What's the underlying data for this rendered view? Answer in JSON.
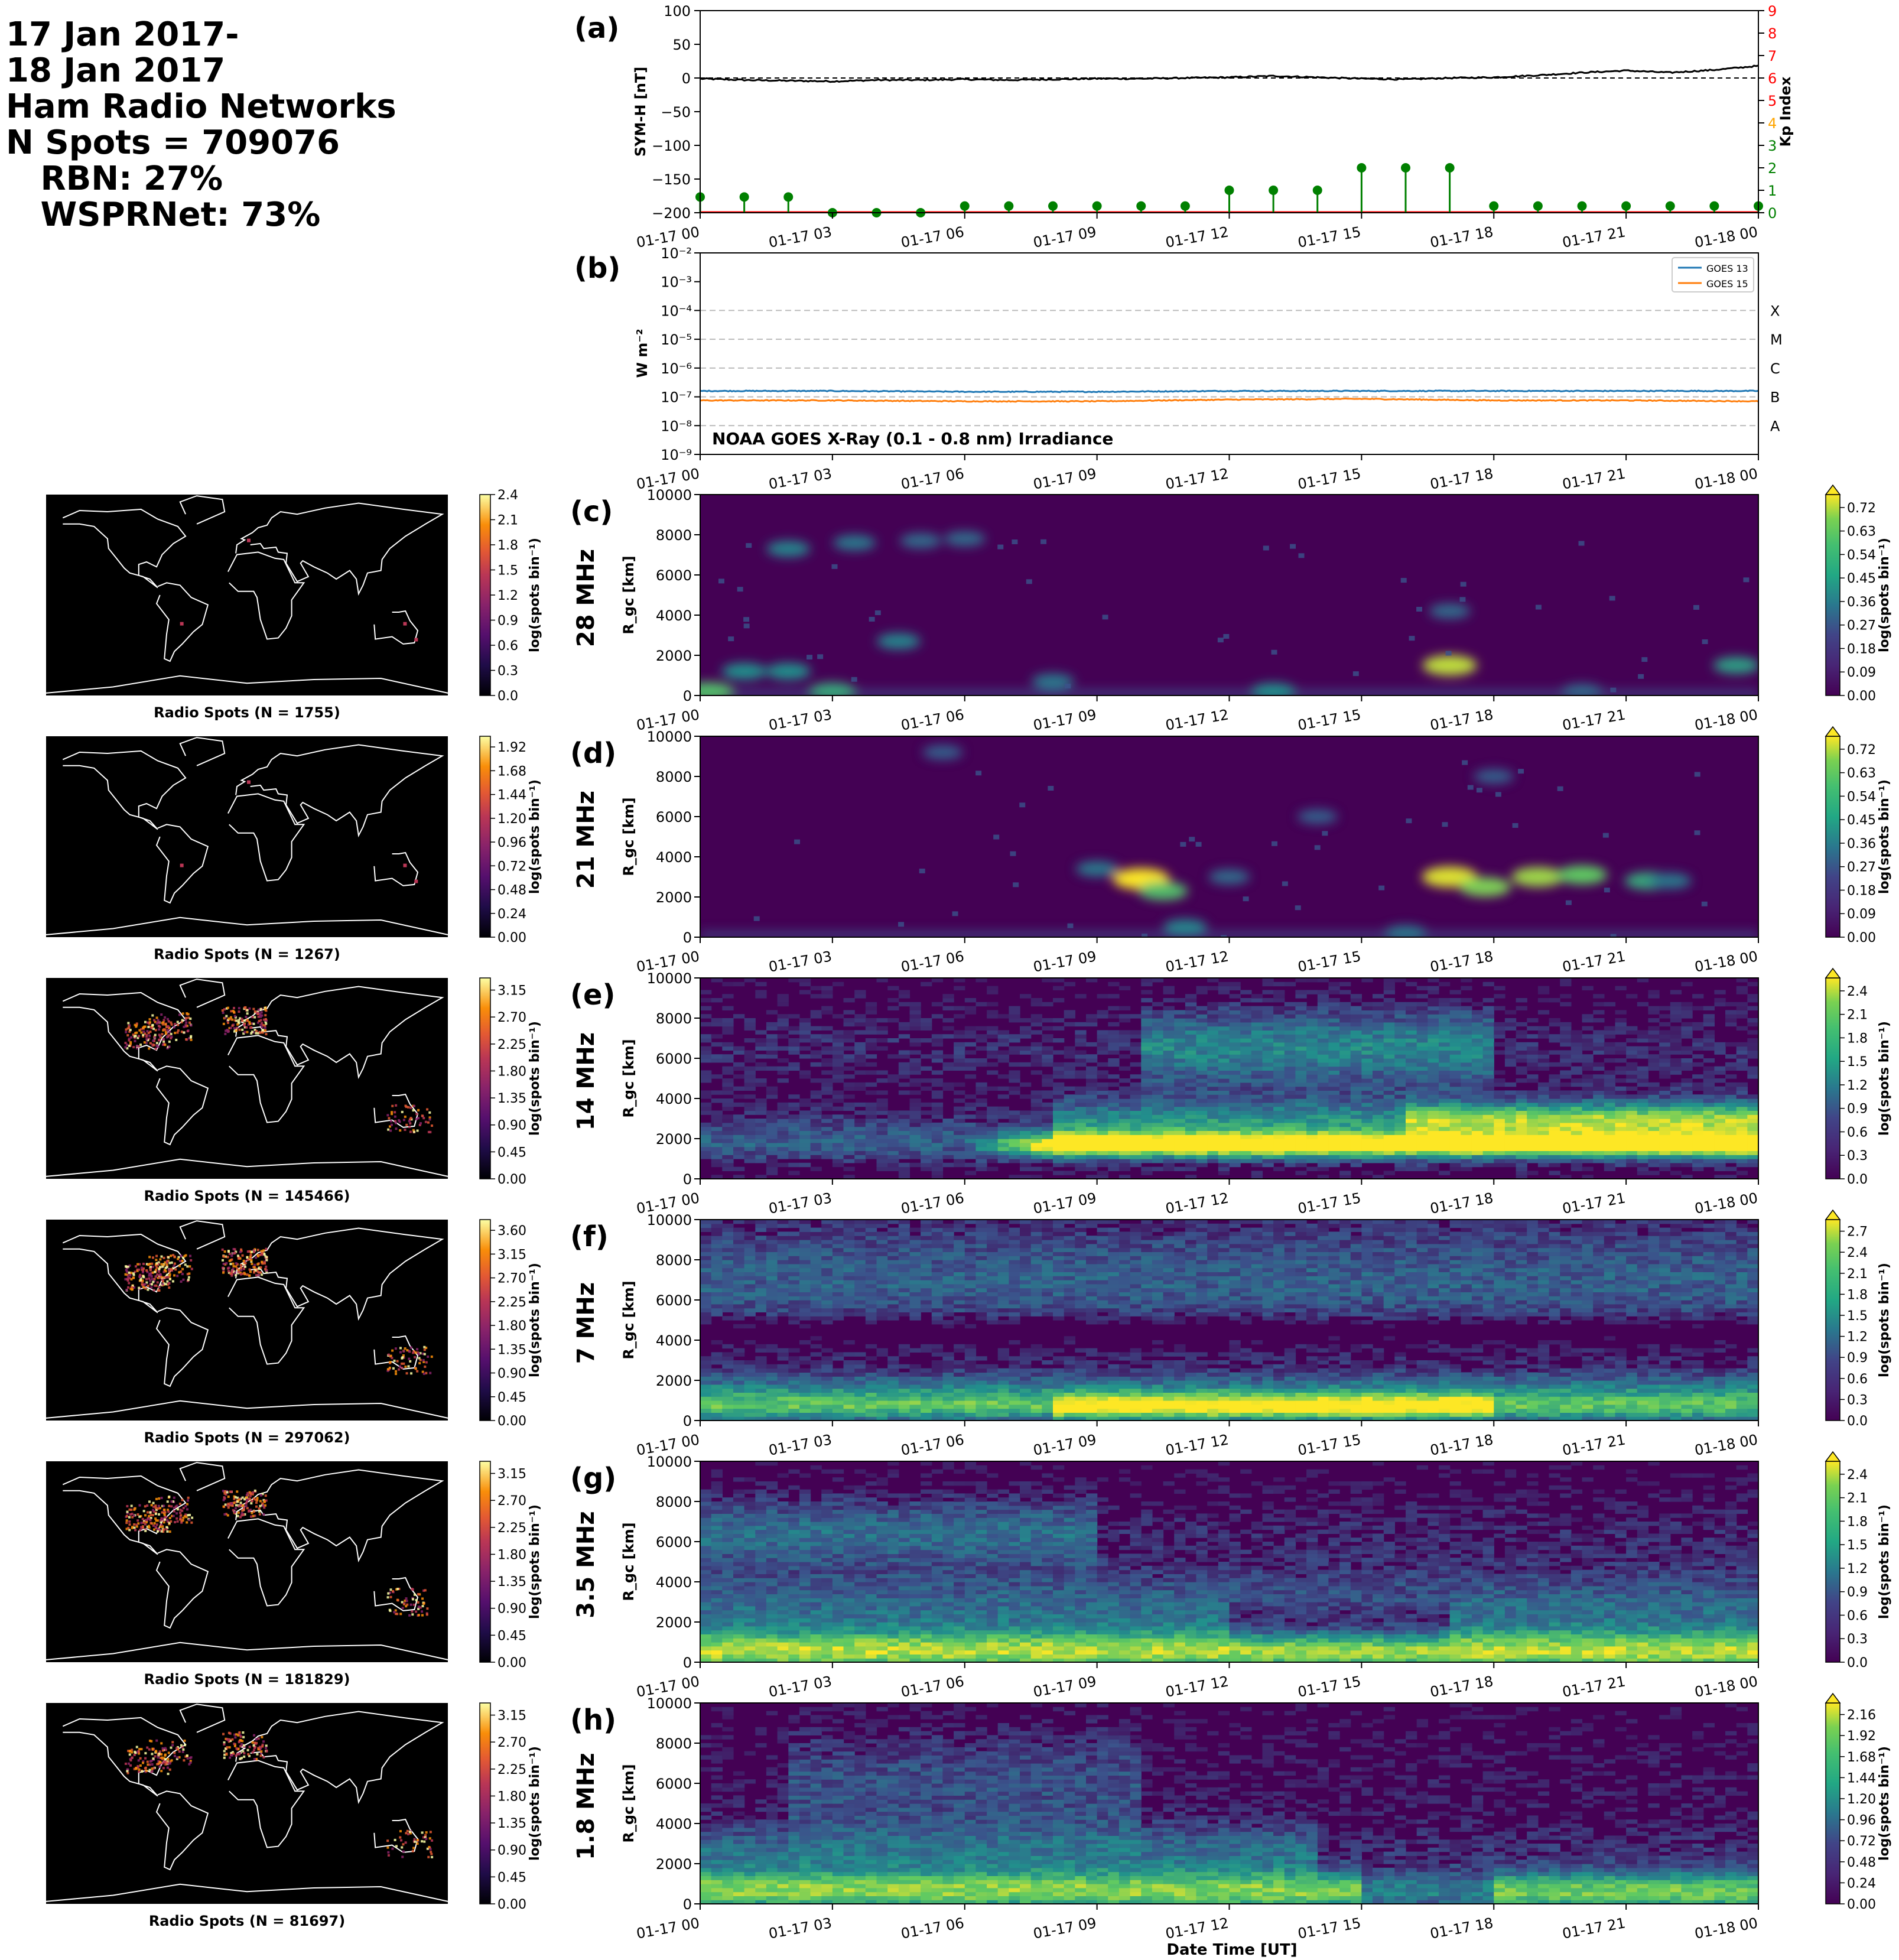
{
  "header": {
    "lines": [
      "17 Jan 2017-",
      "18 Jan 2017",
      "Ham Radio Networks",
      "N Spots = 709076",
      "   RBN: 27%",
      "   WSPRNet: 73%"
    ]
  },
  "time_ticks": [
    "01-17 00",
    "01-17 03",
    "01-17 06",
    "01-17 09",
    "01-17 12",
    "01-17 15",
    "01-17 18",
    "01-17 21",
    "01-18 00"
  ],
  "xlabel": "Date Time [UT]",
  "colors": {
    "symh": "#000000",
    "kp_green": "#008000",
    "kp_red": "#ff0000",
    "kp_orange": "#ffa500",
    "goes13": "#1f77b4",
    "goes15": "#ff7f0e"
  },
  "chart_data": [
    {
      "type": "line",
      "panel": "(a)",
      "ylabel": "SYM-H [nT]",
      "ylim": [
        -200,
        100
      ],
      "yticks": [
        "100",
        "50",
        "0",
        "−50",
        "−100",
        "−150",
        "−200"
      ],
      "symh": {
        "x_hours": [
          0,
          1,
          2,
          3,
          4,
          5,
          6,
          7,
          8,
          9,
          10,
          11,
          12,
          13,
          14,
          15,
          16,
          17,
          18,
          19,
          20,
          21,
          22,
          23,
          24
        ],
        "values": [
          -1,
          -3,
          -4,
          -5,
          -3,
          -3,
          -2,
          -3,
          -2,
          -1,
          -1,
          0,
          1,
          3,
          1,
          -1,
          -2,
          0,
          1,
          4,
          8,
          11,
          8,
          12,
          18
        ]
      },
      "kp": {
        "ylabel": "Kp Index",
        "ylim": [
          0,
          9
        ],
        "yticks": [
          "0",
          "1",
          "2",
          "3",
          "4",
          "5",
          "6",
          "7",
          "8",
          "9"
        ],
        "x_hours": [
          0,
          1,
          2,
          3,
          4,
          5,
          6,
          7,
          8,
          9,
          10,
          11,
          12,
          13,
          14,
          15,
          16,
          17,
          18,
          19,
          20,
          21,
          22,
          23,
          24
        ],
        "values": [
          0.7,
          0.7,
          0.7,
          0,
          0,
          0,
          0.3,
          0.3,
          0.3,
          0.3,
          0.3,
          0.3,
          1,
          1,
          1,
          2,
          2,
          2,
          0.3,
          0.3,
          0.3,
          0.3,
          0.3,
          0.3,
          0.3
        ]
      }
    },
    {
      "type": "line",
      "panel": "(b)",
      "title": "NOAA GOES X-Ray (0.1 - 0.8 nm) Irradiance",
      "ylabel": "W m⁻²",
      "yscale": "log",
      "ylim": [
        1e-09,
        0.01
      ],
      "yticks": [
        "10⁻⁹",
        "10⁻⁸",
        "10⁻⁷",
        "10⁻⁶",
        "10⁻⁵",
        "10⁻⁴",
        "10⁻³",
        "10⁻²"
      ],
      "flare_classes": [
        "A",
        "B",
        "C",
        "M",
        "X"
      ],
      "series": [
        {
          "name": "GOES 13",
          "x_hours": [
            0,
            3,
            6,
            9,
            12,
            15,
            18,
            21,
            24
          ],
          "values": [
            1.6e-07,
            1.6e-07,
            1.5e-07,
            1.5e-07,
            1.6e-07,
            1.6e-07,
            1.6e-07,
            1.6e-07,
            1.6e-07
          ]
        },
        {
          "name": "GOES 15",
          "x_hours": [
            0,
            3,
            6,
            9,
            12,
            15,
            18,
            21,
            24
          ],
          "values": [
            7.5e-08,
            7.5e-08,
            7e-08,
            7e-08,
            8e-08,
            8.5e-08,
            7.5e-08,
            7.5e-08,
            7e-08
          ]
        }
      ]
    },
    {
      "type": "heatmap",
      "panels": [
        {
          "label": "(c)",
          "band": "28 MHz",
          "map_caption": "Radio Spots (N = 1755)",
          "map_cbar_ticks": [
            "0.0",
            "0.3",
            "0.6",
            "0.9",
            "1.2",
            "1.5",
            "1.8",
            "2.1",
            "2.4"
          ],
          "rgc_cbar_ticks": [
            "0.00",
            "0.09",
            "0.18",
            "0.27",
            "0.36",
            "0.45",
            "0.54",
            "0.63",
            "0.72"
          ]
        },
        {
          "label": "(d)",
          "band": "21 MHz",
          "map_caption": "Radio Spots (N = 1267)",
          "map_cbar_ticks": [
            "0.00",
            "0.24",
            "0.48",
            "0.72",
            "0.96",
            "1.20",
            "1.44",
            "1.68",
            "1.92"
          ],
          "rgc_cbar_ticks": [
            "0.00",
            "0.09",
            "0.18",
            "0.27",
            "0.36",
            "0.45",
            "0.54",
            "0.63",
            "0.72"
          ]
        },
        {
          "label": "(e)",
          "band": "14 MHz",
          "map_caption": "Radio Spots (N = 145466)",
          "map_cbar_ticks": [
            "0.00",
            "0.45",
            "0.90",
            "1.35",
            "1.80",
            "2.25",
            "2.70",
            "3.15"
          ],
          "rgc_cbar_ticks": [
            "0.0",
            "0.3",
            "0.6",
            "0.9",
            "1.2",
            "1.5",
            "1.8",
            "2.1",
            "2.4"
          ]
        },
        {
          "label": "(f)",
          "band": "7 MHz",
          "map_caption": "Radio Spots (N = 297062)",
          "map_cbar_ticks": [
            "0.00",
            "0.45",
            "0.90",
            "1.35",
            "1.80",
            "2.25",
            "2.70",
            "3.15",
            "3.60"
          ],
          "rgc_cbar_ticks": [
            "0.0",
            "0.3",
            "0.6",
            "0.9",
            "1.2",
            "1.5",
            "1.8",
            "2.1",
            "2.4",
            "2.7"
          ]
        },
        {
          "label": "(g)",
          "band": "3.5 MHz",
          "map_caption": "Radio Spots (N = 181829)",
          "map_cbar_ticks": [
            "0.00",
            "0.45",
            "0.90",
            "1.35",
            "1.80",
            "2.25",
            "2.70",
            "3.15"
          ],
          "rgc_cbar_ticks": [
            "0.0",
            "0.3",
            "0.6",
            "0.9",
            "1.2",
            "1.5",
            "1.8",
            "2.1",
            "2.4"
          ]
        },
        {
          "label": "(h)",
          "band": "1.8 MHz",
          "map_caption": "Radio Spots (N = 81697)",
          "map_cbar_ticks": [
            "0.00",
            "0.45",
            "0.90",
            "1.35",
            "1.80",
            "2.25",
            "2.70",
            "3.15"
          ],
          "rgc_cbar_ticks": [
            "0.00",
            "0.24",
            "0.48",
            "0.72",
            "0.96",
            "1.20",
            "1.44",
            "1.68",
            "1.92",
            "2.16"
          ]
        }
      ],
      "ylabel": "R_gc [km]",
      "ylim": [
        0,
        10000
      ],
      "yticks": [
        "0",
        "2000",
        "4000",
        "6000",
        "8000",
        "10000"
      ],
      "cbar_label": "log(spots bin⁻¹)"
    }
  ]
}
